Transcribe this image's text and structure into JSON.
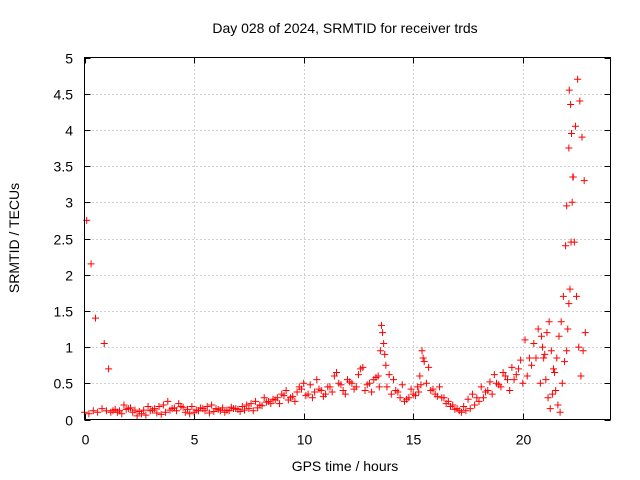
{
  "chart_data": {
    "type": "scatter",
    "title": "Day 028 of 2024, SRMTID for receiver trds",
    "xlabel": "GPS time / hours",
    "ylabel": "SRMTID / TECUs",
    "xlim": [
      0,
      24
    ],
    "ylim": [
      0,
      5
    ],
    "xticks": [
      0,
      5,
      10,
      15,
      20
    ],
    "yticks": [
      0,
      0.5,
      1,
      1.5,
      2,
      2.5,
      3,
      3.5,
      4,
      4.5,
      5
    ],
    "xtick_labels": [
      "0",
      "5",
      "10",
      "15",
      "20"
    ],
    "ytick_labels": [
      "0",
      "0.5",
      "1",
      "1.5",
      "2",
      "2.5",
      "3",
      "3.5",
      "4",
      "4.5",
      "5"
    ],
    "grid": true,
    "marker": "+",
    "marker_color": "#ff0000",
    "series": [
      {
        "name": "SRMTID",
        "x": [
          0.0,
          0.2,
          0.4,
          0.6,
          0.8,
          1.0,
          1.2,
          1.4,
          1.6,
          1.8,
          2.0,
          2.2,
          2.4,
          2.6,
          2.8,
          3.0,
          3.2,
          3.4,
          3.6,
          3.8,
          4.0,
          4.2,
          4.4,
          4.6,
          4.8,
          5.0,
          5.2,
          5.4,
          5.6,
          5.8,
          6.0,
          6.2,
          6.4,
          6.6,
          6.8,
          7.0,
          7.2,
          7.4,
          7.6,
          7.8,
          8.0,
          8.2,
          8.4,
          8.6,
          8.8,
          9.0,
          9.2,
          9.4,
          9.6,
          9.8,
          10.0,
          10.2,
          10.4,
          10.6,
          10.8,
          11.0,
          11.2,
          11.4,
          11.6,
          11.8,
          12.0,
          12.2,
          12.4,
          12.6,
          12.8,
          13.0,
          13.2,
          13.4,
          13.5,
          13.55,
          13.6,
          13.65,
          13.7,
          13.8,
          14.0,
          14.2,
          14.4,
          14.6,
          14.8,
          15.0,
          15.2,
          15.3,
          15.4,
          15.5,
          15.6,
          15.8,
          16.0,
          16.2,
          16.4,
          16.6,
          16.8,
          17.0,
          17.2,
          17.4,
          17.6,
          17.8,
          18.0,
          18.2,
          18.4,
          18.6,
          18.8,
          19.0,
          19.2,
          19.4,
          19.6,
          19.8,
          20.0,
          20.2,
          20.4,
          20.6,
          20.8,
          20.9,
          21.0,
          21.1,
          21.2,
          21.3,
          21.4,
          21.5,
          21.6,
          21.7,
          21.8,
          21.9,
          22.0,
          22.05,
          22.1,
          22.15,
          22.2,
          22.25,
          22.3,
          22.4,
          22.5,
          22.6,
          22.7,
          22.8,
          0.1,
          0.3,
          0.5,
          0.9,
          1.1,
          1.3,
          1.5,
          1.7,
          1.9,
          2.1,
          2.3,
          2.5,
          2.7,
          2.9,
          3.1,
          3.3,
          3.5,
          3.7,
          3.9,
          4.1,
          4.3,
          4.5,
          4.7,
          4.9,
          5.1,
          5.3,
          5.5,
          5.7,
          5.9,
          6.1,
          6.3,
          6.5,
          6.7,
          6.9,
          7.1,
          7.3,
          7.5,
          7.7,
          7.9,
          8.1,
          8.3,
          8.5,
          8.7,
          8.9,
          9.1,
          9.3,
          9.5,
          9.7,
          9.9,
          10.1,
          10.3,
          10.5,
          10.7,
          10.9,
          11.1,
          11.3,
          11.5,
          11.7,
          11.9,
          12.1,
          12.3,
          12.5,
          12.7,
          12.9,
          13.1,
          13.3,
          13.45,
          13.75,
          13.9,
          14.1,
          14.3,
          14.5,
          14.7,
          14.9,
          15.1,
          15.25,
          15.35,
          15.45,
          15.7,
          15.9,
          16.1,
          16.3,
          16.5,
          16.7,
          16.9,
          17.1,
          17.3,
          17.5,
          17.7,
          17.9,
          18.1,
          18.3,
          18.5,
          18.7,
          18.9,
          19.1,
          19.3,
          19.5,
          19.7,
          19.9,
          20.1,
          20.3,
          20.5,
          20.7,
          20.85,
          20.95,
          21.05,
          21.15,
          21.25,
          21.35,
          21.45,
          21.55,
          21.65,
          21.75,
          21.85,
          21.95,
          22.0,
          22.1,
          22.12,
          22.18,
          22.22,
          22.28,
          22.35,
          22.45,
          22.55,
          22.65,
          22.75,
          22.85
        ],
        "y": [
          0.1,
          0.08,
          0.12,
          0.1,
          0.15,
          0.12,
          0.1,
          0.14,
          0.12,
          0.2,
          0.15,
          0.1,
          0.05,
          0.08,
          0.06,
          0.12,
          0.15,
          0.18,
          0.2,
          0.25,
          0.15,
          0.12,
          0.18,
          0.1,
          0.08,
          0.1,
          0.12,
          0.15,
          0.18,
          0.2,
          0.15,
          0.12,
          0.1,
          0.12,
          0.15,
          0.14,
          0.18,
          0.2,
          0.22,
          0.25,
          0.2,
          0.3,
          0.25,
          0.28,
          0.3,
          0.35,
          0.4,
          0.3,
          0.25,
          0.45,
          0.5,
          0.35,
          0.3,
          0.55,
          0.4,
          0.35,
          0.45,
          0.6,
          0.5,
          0.4,
          0.55,
          0.5,
          0.45,
          0.7,
          0.4,
          0.5,
          0.55,
          0.6,
          0.95,
          1.3,
          1.2,
          1.05,
          0.9,
          0.45,
          0.35,
          0.4,
          0.3,
          0.25,
          0.3,
          0.35,
          0.45,
          0.6,
          0.95,
          0.8,
          0.5,
          0.4,
          0.35,
          0.45,
          0.3,
          0.25,
          0.2,
          0.15,
          0.1,
          0.12,
          0.15,
          0.2,
          0.25,
          0.3,
          0.4,
          0.35,
          0.5,
          0.45,
          0.6,
          0.4,
          0.55,
          0.7,
          0.5,
          0.6,
          0.75,
          0.85,
          0.5,
          1.0,
          0.9,
          1.2,
          1.35,
          0.95,
          0.7,
          0.4,
          0.2,
          0.1,
          0.5,
          0.8,
          0.95,
          1.25,
          1.6,
          1.8,
          2.45,
          3.0,
          3.35,
          4.05,
          4.7,
          4.4,
          3.9,
          3.3,
          2.75,
          2.15,
          1.4,
          1.05,
          0.7,
          0.12,
          0.1,
          0.08,
          0.14,
          0.16,
          0.13,
          0.11,
          0.13,
          0.18,
          0.13,
          0.09,
          0.07,
          0.1,
          0.13,
          0.16,
          0.22,
          0.17,
          0.14,
          0.18,
          0.13,
          0.16,
          0.12,
          0.09,
          0.11,
          0.14,
          0.16,
          0.13,
          0.17,
          0.15,
          0.11,
          0.13,
          0.15,
          0.12,
          0.16,
          0.19,
          0.24,
          0.22,
          0.27,
          0.22,
          0.33,
          0.27,
          0.32,
          0.38,
          0.42,
          0.33,
          0.48,
          0.38,
          0.42,
          0.32,
          0.45,
          0.38,
          0.65,
          0.48,
          0.35,
          0.52,
          0.42,
          0.62,
          0.72,
          0.48,
          0.38,
          0.58,
          0.45,
          0.75,
          0.62,
          0.55,
          0.38,
          0.48,
          0.28,
          0.42,
          0.33,
          0.38,
          0.48,
          0.85,
          0.72,
          0.42,
          0.32,
          0.3,
          0.22,
          0.18,
          0.14,
          0.12,
          0.18,
          0.28,
          0.35,
          0.3,
          0.45,
          0.38,
          0.52,
          0.62,
          0.48,
          0.65,
          0.55,
          0.72,
          0.62,
          0.82,
          1.1,
          0.85,
          1.05,
          1.25,
          1.15,
          0.85,
          0.55,
          0.3,
          0.15,
          0.35,
          0.65,
          0.85,
          1.15,
          1.35,
          1.7,
          2.4,
          2.95,
          3.75,
          4.55,
          4.35,
          3.95,
          3.35,
          2.45,
          1.7,
          1.0,
          0.6,
          0.95,
          1.2
        ]
      }
    ]
  }
}
